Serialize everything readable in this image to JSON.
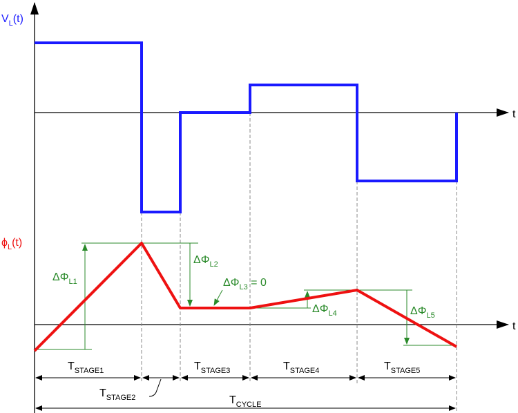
{
  "voltage_axis": {
    "symbol": "V",
    "subscript": "L",
    "arg": "(t)",
    "color": "#1a1aff"
  },
  "flux_axis": {
    "symbol": "ϕ",
    "subscript": "L",
    "arg": "(t)",
    "color": "#ee1111"
  },
  "time_label": "t",
  "deltas": [
    {
      "main": "ΔΦ",
      "sub": "L1",
      "suffix": ""
    },
    {
      "main": "ΔΦ",
      "sub": "L2",
      "suffix": ""
    },
    {
      "main": "ΔΦ",
      "sub": "L3",
      "suffix": " = 0"
    },
    {
      "main": "ΔΦ",
      "sub": "L4",
      "suffix": ""
    },
    {
      "main": "ΔΦ",
      "sub": "L5",
      "suffix": ""
    }
  ],
  "stages": [
    {
      "main": "T",
      "sub": "STAGE1"
    },
    {
      "main": "T",
      "sub": "STAGE2"
    },
    {
      "main": "T",
      "sub": "STAGE3"
    },
    {
      "main": "T",
      "sub": "STAGE4"
    },
    {
      "main": "T",
      "sub": "STAGE5"
    }
  ],
  "cycle": {
    "main": "T",
    "sub": "CYCLE"
  },
  "colors": {
    "voltage": "#1a1aff",
    "flux": "#ee1111",
    "annotation": "#2a8a2a"
  }
}
